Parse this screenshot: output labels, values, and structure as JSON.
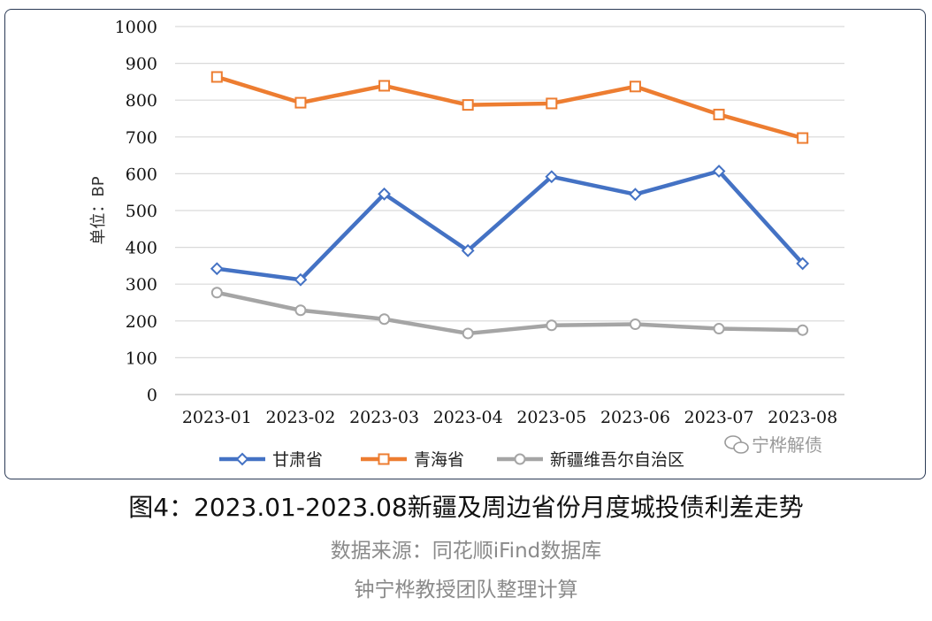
{
  "chart_data": {
    "type": "line",
    "ylabel": "单位：BP",
    "ylim": [
      0,
      1000
    ],
    "yticks": [
      0,
      100,
      200,
      300,
      400,
      500,
      600,
      700,
      800,
      900,
      1000
    ],
    "categories": [
      "2023-01",
      "2023-02",
      "2023-03",
      "2023-04",
      "2023-05",
      "2023-06",
      "2023-07",
      "2023-08"
    ],
    "grid": "horizontal",
    "legend_position": "bottom",
    "series": [
      {
        "name": "甘肃省",
        "color": "#4472c4",
        "marker": "diamond",
        "values": [
          342,
          312,
          545,
          391,
          592,
          544,
          607,
          356
        ]
      },
      {
        "name": "青海省",
        "color": "#ed7d31",
        "marker": "square",
        "values": [
          863,
          793,
          839,
          787,
          791,
          837,
          761,
          697
        ]
      },
      {
        "name": "新疆维吾尔自治区",
        "color": "#a5a5a5",
        "marker": "circle",
        "values": [
          277,
          229,
          205,
          166,
          188,
          191,
          179,
          175
        ]
      }
    ]
  },
  "watermark": {
    "icon": "wechat-icon",
    "text": "宁桦解债"
  },
  "caption": {
    "title": "图4：2023.01-2023.08新疆及周边省份月度城投债利差走势",
    "source": "数据来源：同花顺iFind数据库",
    "author": "钟宁桦教授团队整理计算"
  }
}
